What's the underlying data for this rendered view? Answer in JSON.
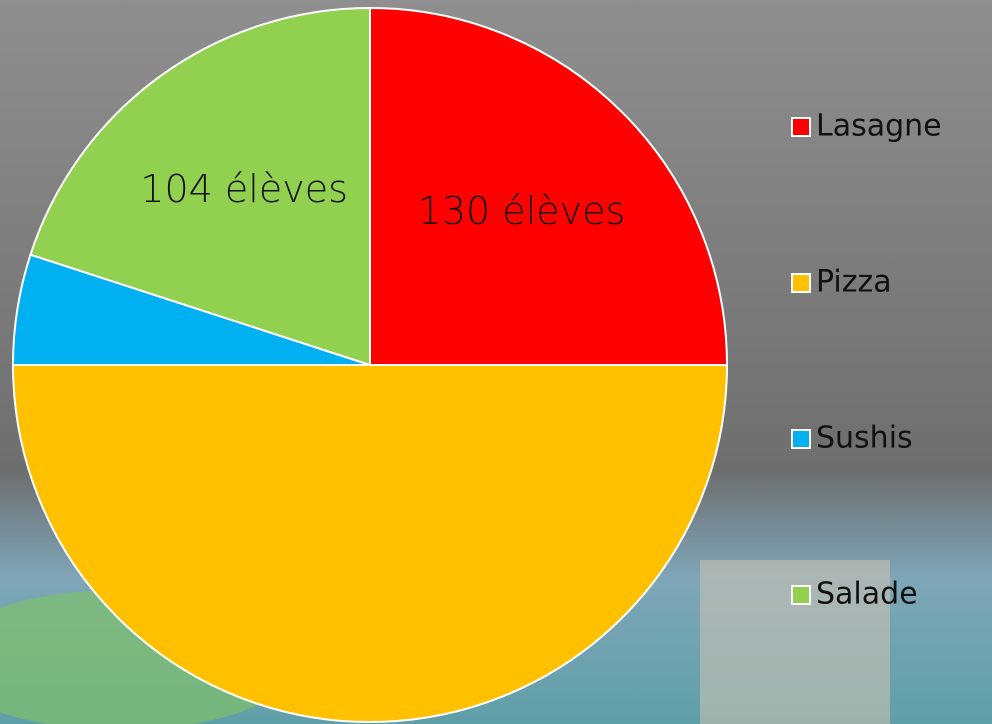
{
  "chart_data": {
    "type": "pie",
    "categories": [
      "Lasagne",
      "Pizza",
      "Sushis",
      "Salade"
    ],
    "values": [
      130,
      260,
      26,
      104
    ],
    "value_labels": [
      "130 élèves",
      null,
      null,
      "104 élèves"
    ],
    "colors": [
      "#ff0000",
      "#ffc000",
      "#00b0f0",
      "#92d050"
    ],
    "legend": "right"
  }
}
